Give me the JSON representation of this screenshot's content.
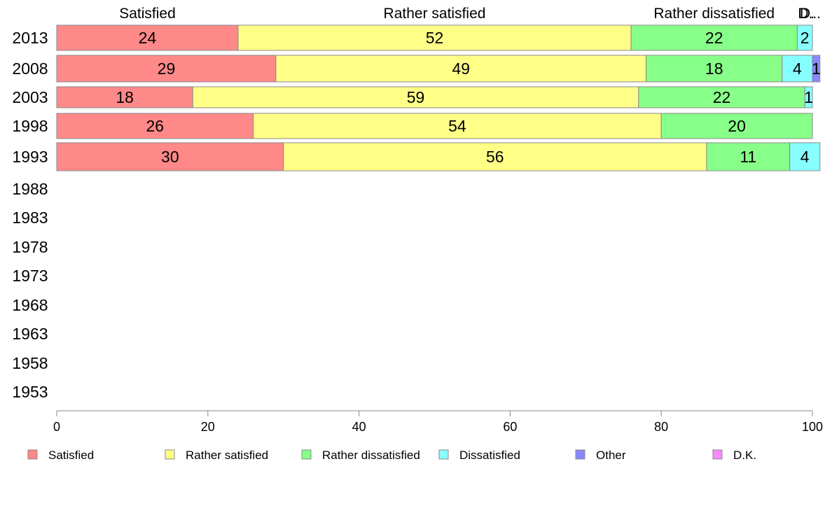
{
  "chart_data": {
    "type": "bar",
    "orientation": "horizontal",
    "stacked": true,
    "categories": [
      "2013",
      "2008",
      "2003",
      "1998",
      "1993",
      "1988",
      "1983",
      "1978",
      "1973",
      "1968",
      "1963",
      "1958",
      "1953"
    ],
    "series": [
      {
        "name": "Satisfied",
        "color": "#ff8888",
        "values": [
          24,
          29,
          18,
          26,
          30,
          null,
          null,
          null,
          null,
          null,
          null,
          null,
          null
        ],
        "labels": [
          "24",
          "29",
          "18",
          "26",
          "30"
        ]
      },
      {
        "name": "Rather satisfied",
        "color": "#ffff88",
        "values": [
          52,
          49,
          59,
          54,
          56,
          null,
          null,
          null,
          null,
          null,
          null,
          null,
          null
        ],
        "labels": [
          "52",
          "49",
          "59",
          "54",
          "56"
        ]
      },
      {
        "name": "Rather dissatisfied",
        "color": "#88ff88",
        "values": [
          22,
          18,
          22,
          20,
          11,
          null,
          null,
          null,
          null,
          null,
          null,
          null,
          null
        ],
        "labels": [
          "22",
          "18",
          "22",
          "20",
          "11"
        ]
      },
      {
        "name": "Dissatisfied",
        "color": "#88ffff",
        "values": [
          2,
          4,
          1,
          0,
          4,
          null,
          null,
          null,
          null,
          null,
          null,
          null,
          null
        ],
        "labels": [
          "2",
          "4",
          "1",
          "",
          "4"
        ]
      },
      {
        "name": "Other",
        "color": "#8888ff",
        "values": [
          0,
          1,
          0,
          0,
          0,
          null,
          null,
          null,
          null,
          null,
          null,
          null,
          null
        ],
        "labels": [
          "",
          "1",
          "",
          "",
          ""
        ]
      },
      {
        "name": "D.K.",
        "color": "#ff88ff",
        "values": [
          0,
          0,
          0,
          0,
          0,
          null,
          null,
          null,
          null,
          null,
          null,
          null,
          null
        ],
        "labels": [
          "",
          "",
          "",
          "",
          ""
        ]
      }
    ],
    "top_labels": [
      "Satisfied",
      "Rather satisfied",
      "Rather dissatisfied",
      "D.",
      "D..."
    ],
    "xlim": [
      0,
      100
    ],
    "xticks": [
      "0",
      "20",
      "40",
      "60",
      "80",
      "100"
    ],
    "grid": false,
    "legend_position": "bottom"
  }
}
